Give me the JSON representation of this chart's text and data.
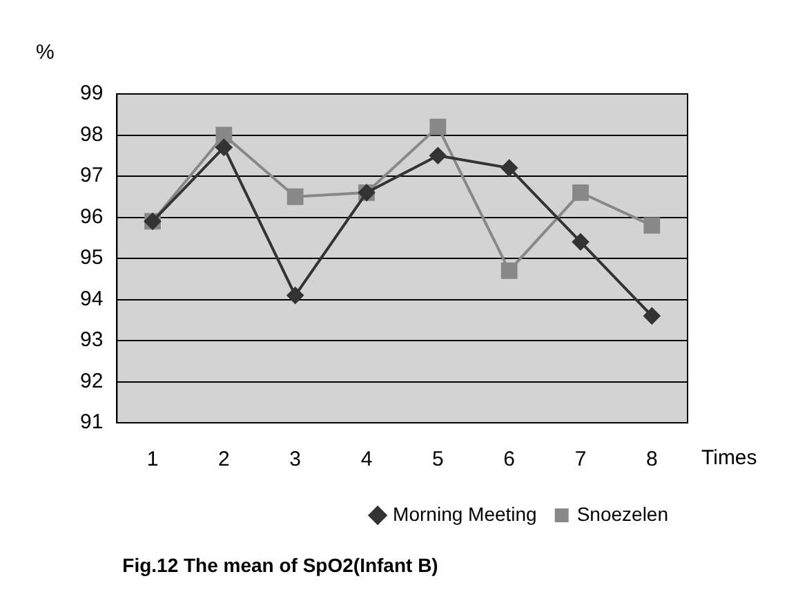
{
  "chart_data": {
    "type": "line",
    "title": "Fig.12 The mean of SpO2(Infant B)",
    "xlabel": "Times",
    "ylabel": "%",
    "categories": [
      "1",
      "2",
      "3",
      "4",
      "5",
      "6",
      "7",
      "8"
    ],
    "series": [
      {
        "name": "Morning Meeting",
        "color": "#333333",
        "marker": "diamond",
        "values": [
          95.9,
          97.7,
          94.1,
          96.6,
          97.5,
          97.2,
          95.4,
          93.6
        ]
      },
      {
        "name": "Snoezelen",
        "color": "#888888",
        "marker": "square",
        "values": [
          95.9,
          98.0,
          96.5,
          96.6,
          98.2,
          94.7,
          96.6,
          95.8
        ]
      }
    ],
    "ylim": [
      91,
      99
    ],
    "yticks": [
      91,
      92,
      93,
      94,
      95,
      96,
      97,
      98,
      99
    ],
    "grid": "y",
    "legend": "bottom right"
  }
}
